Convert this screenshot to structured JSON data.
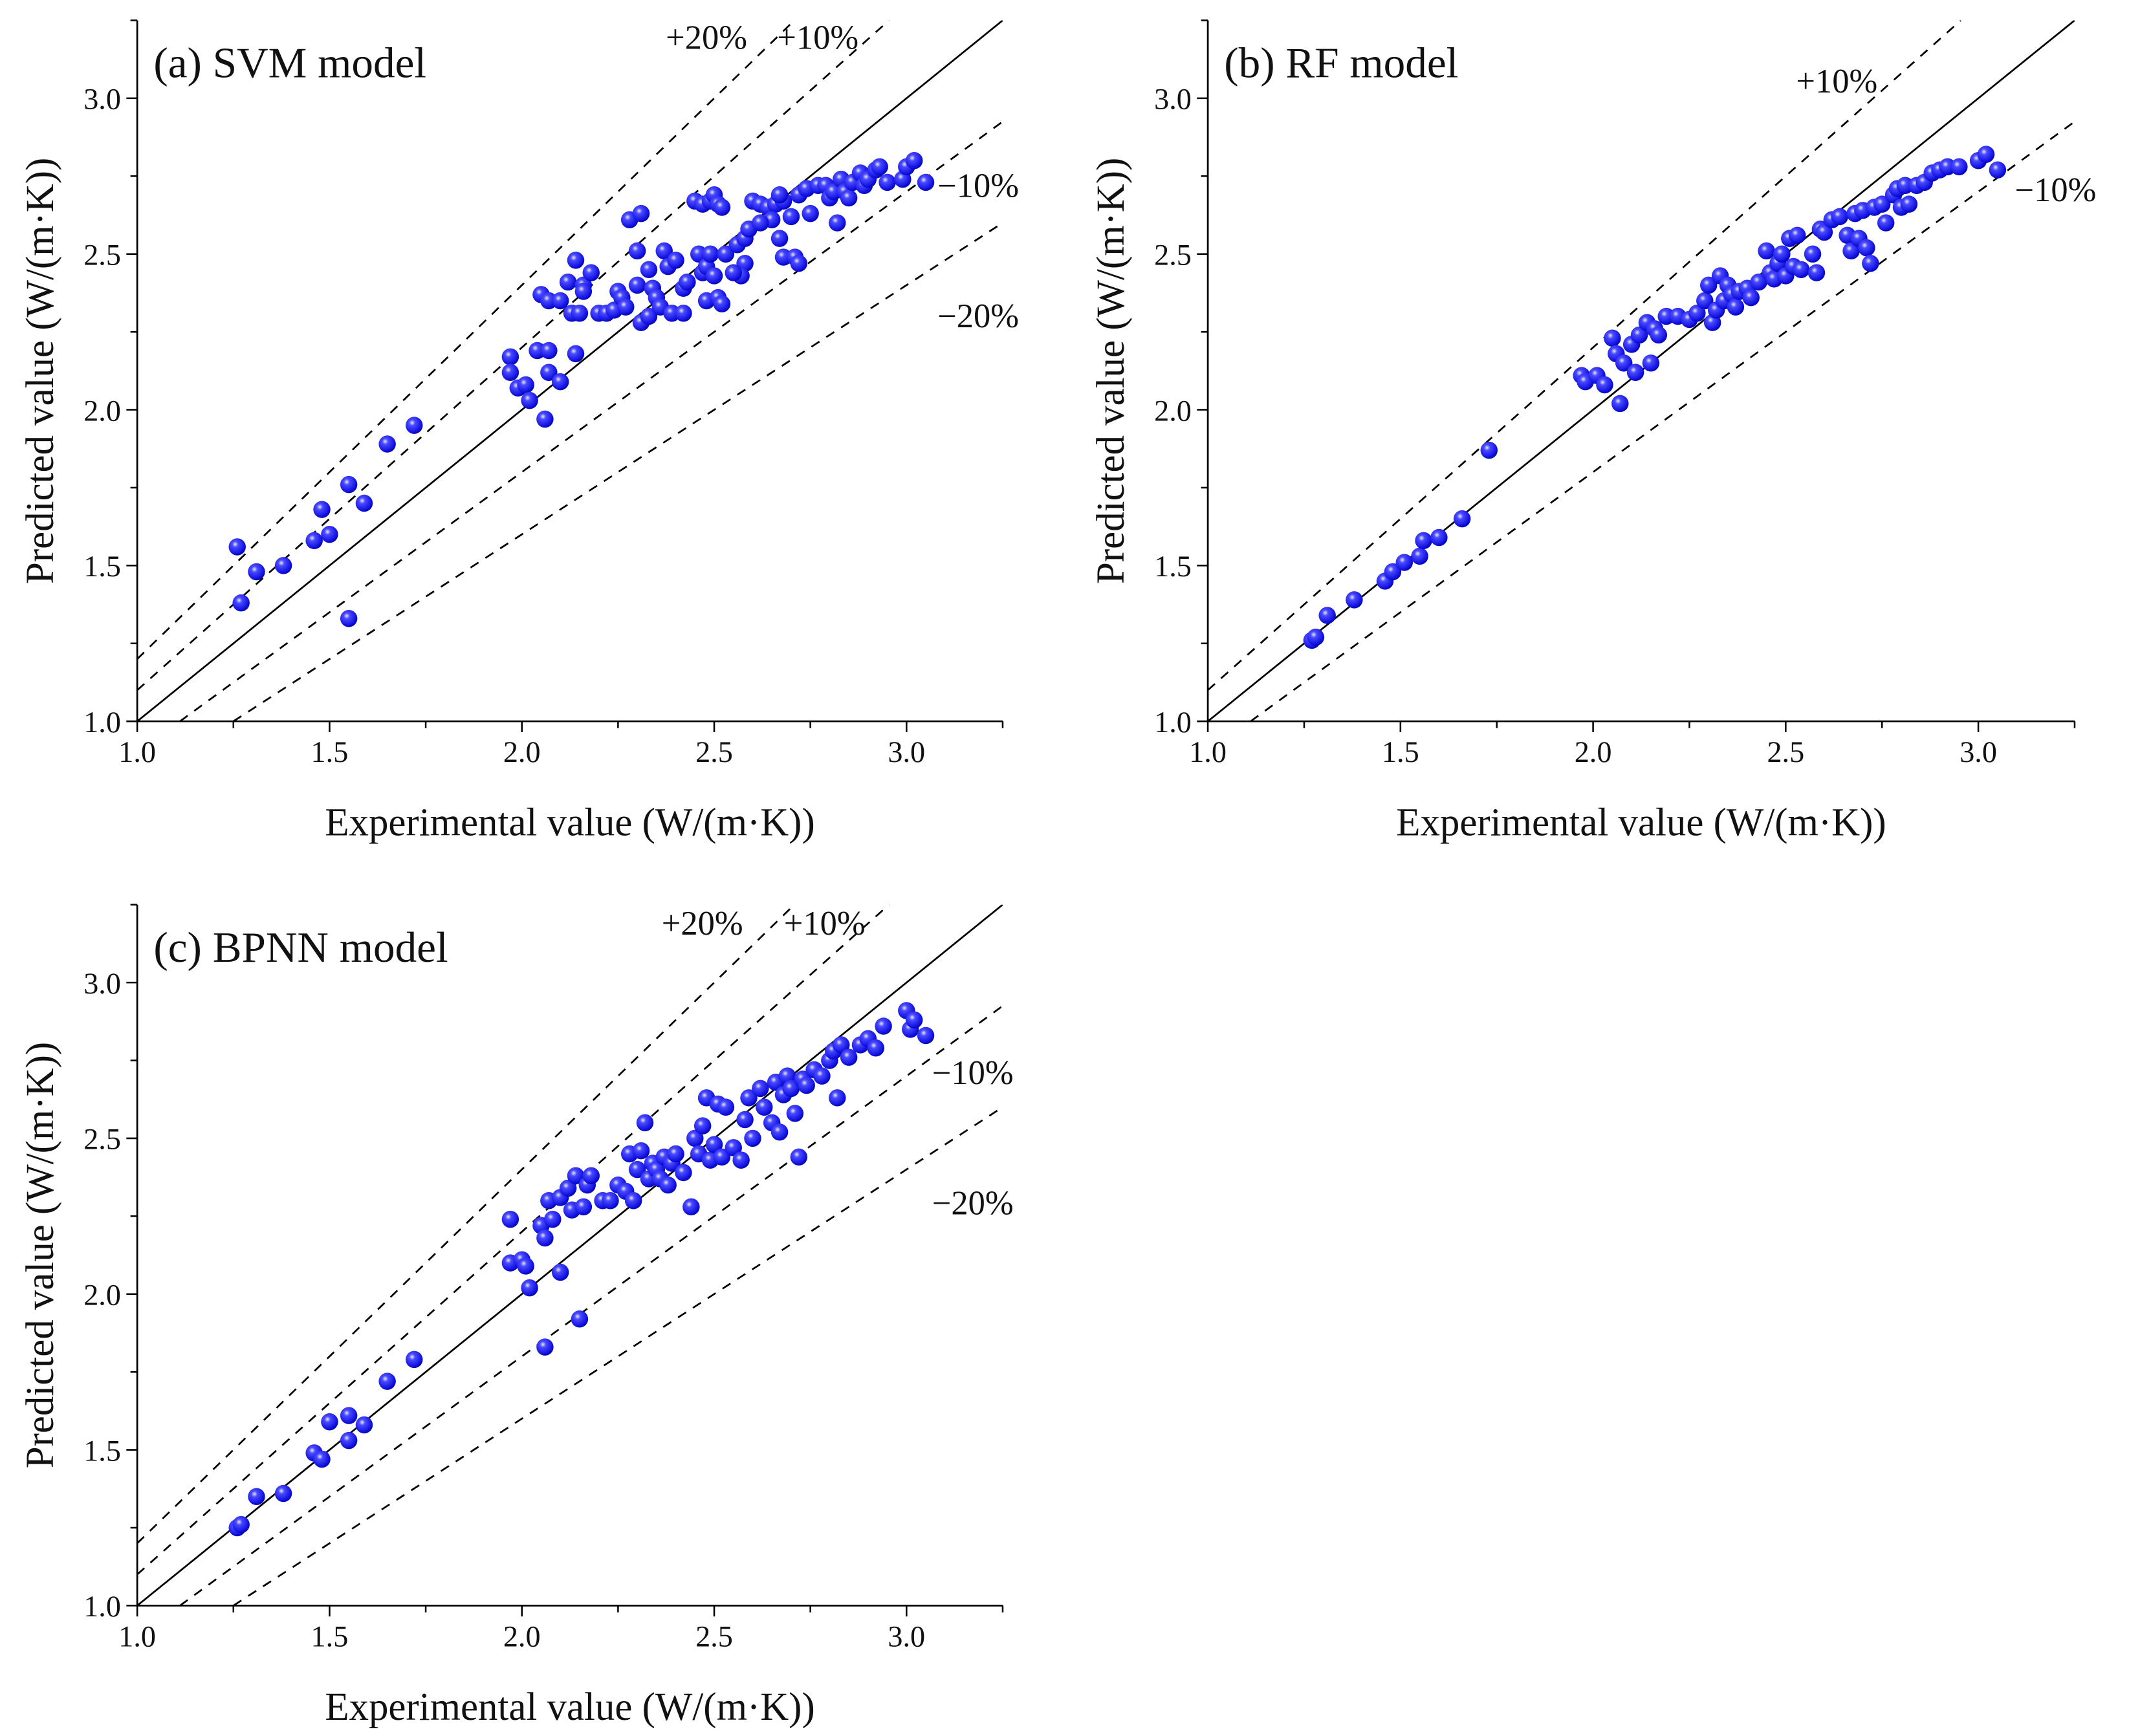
{
  "chart_data": [
    {
      "type": "scatter",
      "title": "(a) SVM model",
      "xlabel": "Experimental value (W/(m·K))",
      "ylabel": "Predicted value (W/(m·K))",
      "xlim": [
        1.0,
        3.25
      ],
      "ylim": [
        1.0,
        3.25
      ],
      "xticks": [
        "1.0",
        "1.5",
        "2.0",
        "2.5",
        "3.0"
      ],
      "yticks": [
        "1.0",
        "1.5",
        "2.0",
        "2.5",
        "3.0"
      ],
      "grid": false,
      "point_color": "#1a1aff",
      "reference_lines": [
        {
          "label": "+20%",
          "slope": 1.2
        },
        {
          "label": "+10%",
          "slope": 1.1
        },
        {
          "label": "",
          "slope": 1.0
        },
        {
          "label": "−10%",
          "slope": 0.9
        },
        {
          "label": "−20%",
          "slope": 0.8
        }
      ],
      "points": [
        [
          1.26,
          1.56
        ],
        [
          1.27,
          1.38
        ],
        [
          1.31,
          1.48
        ],
        [
          1.38,
          1.5
        ],
        [
          1.46,
          1.58
        ],
        [
          1.48,
          1.68
        ],
        [
          1.5,
          1.6
        ],
        [
          1.55,
          1.76
        ],
        [
          1.55,
          1.33
        ],
        [
          1.59,
          1.7
        ],
        [
          1.65,
          1.89
        ],
        [
          1.72,
          1.95
        ],
        [
          1.97,
          2.17
        ],
        [
          1.97,
          2.12
        ],
        [
          1.99,
          2.07
        ],
        [
          2.01,
          2.08
        ],
        [
          2.02,
          2.03
        ],
        [
          2.06,
          1.97
        ],
        [
          2.04,
          2.19
        ],
        [
          2.07,
          2.19
        ],
        [
          2.07,
          2.12
        ],
        [
          2.1,
          2.09
        ],
        [
          2.14,
          2.18
        ],
        [
          2.05,
          2.37
        ],
        [
          2.07,
          2.35
        ],
        [
          2.1,
          2.35
        ],
        [
          2.13,
          2.31
        ],
        [
          2.15,
          2.31
        ],
        [
          2.14,
          2.48
        ],
        [
          2.12,
          2.41
        ],
        [
          2.16,
          2.4
        ],
        [
          2.18,
          2.44
        ],
        [
          2.16,
          2.38
        ],
        [
          2.2,
          2.31
        ],
        [
          2.22,
          2.31
        ],
        [
          2.24,
          2.32
        ],
        [
          2.25,
          2.38
        ],
        [
          2.26,
          2.36
        ],
        [
          2.27,
          2.33
        ],
        [
          2.28,
          2.61
        ],
        [
          2.31,
          2.63
        ],
        [
          2.3,
          2.51
        ],
        [
          2.3,
          2.4
        ],
        [
          2.31,
          2.28
        ],
        [
          2.33,
          2.3
        ],
        [
          2.33,
          2.45
        ],
        [
          2.34,
          2.39
        ],
        [
          2.35,
          2.36
        ],
        [
          2.36,
          2.33
        ],
        [
          2.37,
          2.51
        ],
        [
          2.38,
          2.46
        ],
        [
          2.4,
          2.48
        ],
        [
          2.39,
          2.31
        ],
        [
          2.42,
          2.31
        ],
        [
          2.42,
          2.39
        ],
        [
          2.43,
          2.41
        ],
        [
          2.45,
          2.67
        ],
        [
          2.47,
          2.66
        ],
        [
          2.49,
          2.67
        ],
        [
          2.5,
          2.69
        ],
        [
          2.51,
          2.66
        ],
        [
          2.52,
          2.65
        ],
        [
          2.46,
          2.5
        ],
        [
          2.47,
          2.44
        ],
        [
          2.48,
          2.46
        ],
        [
          2.49,
          2.5
        ],
        [
          2.5,
          2.43
        ],
        [
          2.48,
          2.35
        ],
        [
          2.51,
          2.36
        ],
        [
          2.53,
          2.5
        ],
        [
          2.52,
          2.34
        ],
        [
          2.56,
          2.53
        ],
        [
          2.58,
          2.55
        ],
        [
          2.58,
          2.47
        ],
        [
          2.57,
          2.43
        ],
        [
          2.59,
          2.58
        ],
        [
          2.6,
          2.67
        ],
        [
          2.62,
          2.66
        ],
        [
          2.64,
          2.65
        ],
        [
          2.66,
          2.66
        ],
        [
          2.68,
          2.67
        ],
        [
          2.65,
          2.61
        ],
        [
          2.67,
          2.55
        ],
        [
          2.68,
          2.49
        ],
        [
          2.7,
          2.62
        ],
        [
          2.71,
          2.49
        ],
        [
          2.72,
          2.47
        ],
        [
          2.72,
          2.69
        ],
        [
          2.74,
          2.71
        ],
        [
          2.75,
          2.63
        ],
        [
          2.77,
          2.72
        ],
        [
          2.79,
          2.72
        ],
        [
          2.8,
          2.68
        ],
        [
          2.81,
          2.7
        ],
        [
          2.82,
          2.6
        ],
        [
          2.83,
          2.74
        ],
        [
          2.84,
          2.7
        ],
        [
          2.85,
          2.68
        ],
        [
          2.86,
          2.73
        ],
        [
          2.88,
          2.76
        ],
        [
          2.89,
          2.72
        ],
        [
          2.9,
          2.74
        ],
        [
          2.92,
          2.77
        ],
        [
          2.93,
          2.78
        ],
        [
          2.95,
          2.73
        ],
        [
          2.99,
          2.74
        ],
        [
          3.0,
          2.78
        ],
        [
          3.02,
          2.8
        ],
        [
          3.05,
          2.73
        ],
        [
          2.55,
          2.44
        ],
        [
          2.62,
          2.6
        ],
        [
          2.67,
          2.69
        ]
      ]
    },
    {
      "type": "scatter",
      "title": "(b) RF model",
      "xlabel": "Experimental value (W/(m·K))",
      "ylabel": "Predicted value (W/(m·K))",
      "xlim": [
        1.0,
        3.25
      ],
      "ylim": [
        1.0,
        3.25
      ],
      "xticks": [
        "1.0",
        "1.5",
        "2.0",
        "2.5",
        "3.0"
      ],
      "yticks": [
        "1.0",
        "1.5",
        "2.0",
        "2.5",
        "3.0"
      ],
      "grid": false,
      "point_color": "#1a1aff",
      "reference_lines": [
        {
          "label": "+10%",
          "slope": 1.1
        },
        {
          "label": "",
          "slope": 1.0
        },
        {
          "label": "−10%",
          "slope": 0.9
        }
      ],
      "points": [
        [
          1.27,
          1.26
        ],
        [
          1.28,
          1.27
        ],
        [
          1.31,
          1.34
        ],
        [
          1.38,
          1.39
        ],
        [
          1.46,
          1.45
        ],
        [
          1.48,
          1.48
        ],
        [
          1.51,
          1.51
        ],
        [
          1.55,
          1.53
        ],
        [
          1.56,
          1.58
        ],
        [
          1.6,
          1.59
        ],
        [
          1.66,
          1.65
        ],
        [
          1.73,
          1.87
        ],
        [
          1.97,
          2.11
        ],
        [
          1.98,
          2.09
        ],
        [
          2.01,
          2.11
        ],
        [
          2.03,
          2.08
        ],
        [
          2.05,
          2.23
        ],
        [
          2.06,
          2.18
        ],
        [
          2.07,
          2.02
        ],
        [
          2.08,
          2.15
        ],
        [
          2.1,
          2.21
        ],
        [
          2.11,
          2.12
        ],
        [
          2.12,
          2.24
        ],
        [
          2.14,
          2.28
        ],
        [
          2.15,
          2.15
        ],
        [
          2.16,
          2.26
        ],
        [
          2.17,
          2.24
        ],
        [
          2.19,
          2.3
        ],
        [
          2.22,
          2.3
        ],
        [
          2.25,
          2.29
        ],
        [
          2.27,
          2.31
        ],
        [
          2.29,
          2.35
        ],
        [
          2.3,
          2.4
        ],
        [
          2.31,
          2.28
        ],
        [
          2.32,
          2.32
        ],
        [
          2.33,
          2.43
        ],
        [
          2.34,
          2.35
        ],
        [
          2.35,
          2.4
        ],
        [
          2.36,
          2.37
        ],
        [
          2.37,
          2.33
        ],
        [
          2.38,
          2.38
        ],
        [
          2.4,
          2.39
        ],
        [
          2.41,
          2.36
        ],
        [
          2.43,
          2.41
        ],
        [
          2.45,
          2.51
        ],
        [
          2.46,
          2.44
        ],
        [
          2.47,
          2.42
        ],
        [
          2.48,
          2.47
        ],
        [
          2.49,
          2.5
        ],
        [
          2.5,
          2.43
        ],
        [
          2.51,
          2.55
        ],
        [
          2.52,
          2.46
        ],
        [
          2.53,
          2.56
        ],
        [
          2.54,
          2.45
        ],
        [
          2.57,
          2.5
        ],
        [
          2.58,
          2.44
        ],
        [
          2.59,
          2.58
        ],
        [
          2.6,
          2.57
        ],
        [
          2.62,
          2.61
        ],
        [
          2.64,
          2.62
        ],
        [
          2.66,
          2.56
        ],
        [
          2.67,
          2.51
        ],
        [
          2.68,
          2.63
        ],
        [
          2.69,
          2.55
        ],
        [
          2.7,
          2.64
        ],
        [
          2.71,
          2.52
        ],
        [
          2.72,
          2.47
        ],
        [
          2.73,
          2.65
        ],
        [
          2.75,
          2.66
        ],
        [
          2.76,
          2.6
        ],
        [
          2.78,
          2.69
        ],
        [
          2.79,
          2.71
        ],
        [
          2.8,
          2.65
        ],
        [
          2.81,
          2.72
        ],
        [
          2.82,
          2.66
        ],
        [
          2.84,
          2.72
        ],
        [
          2.86,
          2.73
        ],
        [
          2.88,
          2.76
        ],
        [
          2.9,
          2.77
        ],
        [
          2.92,
          2.78
        ],
        [
          2.95,
          2.78
        ],
        [
          3.0,
          2.8
        ],
        [
          3.02,
          2.82
        ],
        [
          3.05,
          2.77
        ]
      ]
    },
    {
      "type": "scatter",
      "title": "(c) BPNN model",
      "xlabel": "Experimental value (W/(m·K))",
      "ylabel": "Predicted value (W/(m·K))",
      "xlim": [
        1.0,
        3.25
      ],
      "ylim": [
        1.0,
        3.25
      ],
      "xticks": [
        "1.0",
        "1.5",
        "2.0",
        "2.5",
        "3.0"
      ],
      "yticks": [
        "1.0",
        "1.5",
        "2.0",
        "2.5",
        "3.0"
      ],
      "grid": false,
      "point_color": "#1a1aff",
      "reference_lines": [
        {
          "label": "+20%",
          "slope": 1.2
        },
        {
          "label": "+10%",
          "slope": 1.1
        },
        {
          "label": "",
          "slope": 1.0
        },
        {
          "label": "−10%",
          "slope": 0.9
        },
        {
          "label": "−20%",
          "slope": 0.8
        }
      ],
      "points": [
        [
          1.26,
          1.25
        ],
        [
          1.27,
          1.26
        ],
        [
          1.31,
          1.35
        ],
        [
          1.38,
          1.36
        ],
        [
          1.46,
          1.49
        ],
        [
          1.48,
          1.47
        ],
        [
          1.5,
          1.59
        ],
        [
          1.55,
          1.53
        ],
        [
          1.55,
          1.61
        ],
        [
          1.59,
          1.58
        ],
        [
          1.65,
          1.72
        ],
        [
          1.72,
          1.79
        ],
        [
          1.97,
          2.24
        ],
        [
          1.97,
          2.1
        ],
        [
          2.0,
          2.11
        ],
        [
          2.01,
          2.09
        ],
        [
          2.02,
          2.02
        ],
        [
          2.06,
          1.83
        ],
        [
          2.05,
          2.22
        ],
        [
          2.06,
          2.18
        ],
        [
          2.07,
          2.3
        ],
        [
          2.08,
          2.24
        ],
        [
          2.1,
          2.07
        ],
        [
          2.1,
          2.31
        ],
        [
          2.12,
          2.34
        ],
        [
          2.13,
          2.27
        ],
        [
          2.14,
          2.38
        ],
        [
          2.15,
          1.92
        ],
        [
          2.16,
          2.28
        ],
        [
          2.17,
          2.35
        ],
        [
          2.18,
          2.38
        ],
        [
          2.21,
          2.3
        ],
        [
          2.23,
          2.3
        ],
        [
          2.25,
          2.35
        ],
        [
          2.27,
          2.33
        ],
        [
          2.28,
          2.45
        ],
        [
          2.29,
          2.3
        ],
        [
          2.3,
          2.4
        ],
        [
          2.31,
          2.46
        ],
        [
          2.32,
          2.55
        ],
        [
          2.33,
          2.37
        ],
        [
          2.34,
          2.42
        ],
        [
          2.35,
          2.4
        ],
        [
          2.36,
          2.37
        ],
        [
          2.37,
          2.44
        ],
        [
          2.38,
          2.35
        ],
        [
          2.39,
          2.42
        ],
        [
          2.4,
          2.45
        ],
        [
          2.42,
          2.39
        ],
        [
          2.44,
          2.28
        ],
        [
          2.45,
          2.5
        ],
        [
          2.46,
          2.45
        ],
        [
          2.47,
          2.54
        ],
        [
          2.48,
          2.63
        ],
        [
          2.49,
          2.43
        ],
        [
          2.5,
          2.48
        ],
        [
          2.51,
          2.61
        ],
        [
          2.52,
          2.44
        ],
        [
          2.53,
          2.6
        ],
        [
          2.55,
          2.47
        ],
        [
          2.57,
          2.43
        ],
        [
          2.58,
          2.56
        ],
        [
          2.59,
          2.63
        ],
        [
          2.6,
          2.5
        ],
        [
          2.62,
          2.66
        ],
        [
          2.63,
          2.6
        ],
        [
          2.65,
          2.55
        ],
        [
          2.66,
          2.68
        ],
        [
          2.67,
          2.52
        ],
        [
          2.68,
          2.64
        ],
        [
          2.69,
          2.7
        ],
        [
          2.7,
          2.66
        ],
        [
          2.71,
          2.58
        ],
        [
          2.72,
          2.44
        ],
        [
          2.73,
          2.69
        ],
        [
          2.74,
          2.67
        ],
        [
          2.76,
          2.72
        ],
        [
          2.78,
          2.7
        ],
        [
          2.8,
          2.75
        ],
        [
          2.81,
          2.78
        ],
        [
          2.82,
          2.63
        ],
        [
          2.83,
          2.8
        ],
        [
          2.85,
          2.76
        ],
        [
          2.88,
          2.8
        ],
        [
          2.9,
          2.82
        ],
        [
          2.92,
          2.79
        ],
        [
          2.94,
          2.86
        ],
        [
          3.0,
          2.91
        ],
        [
          3.01,
          2.85
        ],
        [
          3.02,
          2.88
        ],
        [
          3.05,
          2.83
        ]
      ]
    }
  ]
}
